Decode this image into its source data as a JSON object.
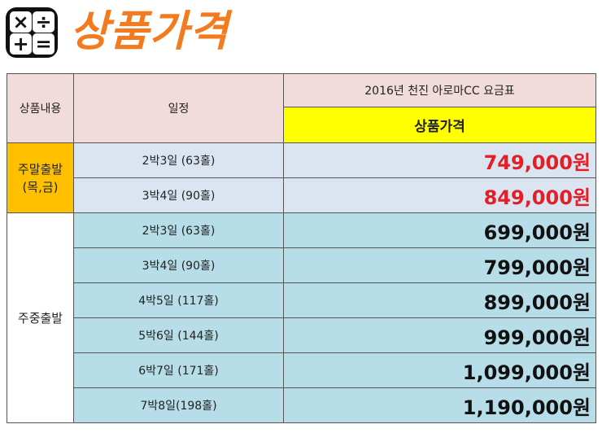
{
  "header": {
    "icon_name": "calculator-icon",
    "title": "상품가격",
    "title_color": "#f47a1f"
  },
  "table": {
    "col_category": "상품내용",
    "col_schedule": "일정",
    "col_title": "2016년 천진 아로마CC 요금표",
    "col_price": "상품가격",
    "groups": [
      {
        "category_line1": "주말출발",
        "category_line2": "(목,금)",
        "color": "#ffc000",
        "rows": [
          {
            "schedule": "2박3일 (63홀)",
            "price": "749,000원",
            "price_color": "#e21f26"
          },
          {
            "schedule": "3박4일 (90홀)",
            "price": "849,000원",
            "price_color": "#e21f26"
          }
        ]
      },
      {
        "category_line1": "주중출발",
        "color": "#ffffff",
        "rows": [
          {
            "schedule": "2박3일 (63홀)",
            "price": "699,000원",
            "price_color": "#111111"
          },
          {
            "schedule": "3박4일 (90홀)",
            "price": "799,000원",
            "price_color": "#111111"
          },
          {
            "schedule": "4박5일 (117홀)",
            "price": "899,000원",
            "price_color": "#111111"
          },
          {
            "schedule": "5박6일 (144홀)",
            "price": "999,000원",
            "price_color": "#111111"
          },
          {
            "schedule": "6박7일 (171홀)",
            "price": "1,099,000원",
            "price_color": "#111111"
          },
          {
            "schedule": "7박8일(198홀)",
            "price": "1,190,000원",
            "price_color": "#111111"
          }
        ]
      }
    ]
  }
}
